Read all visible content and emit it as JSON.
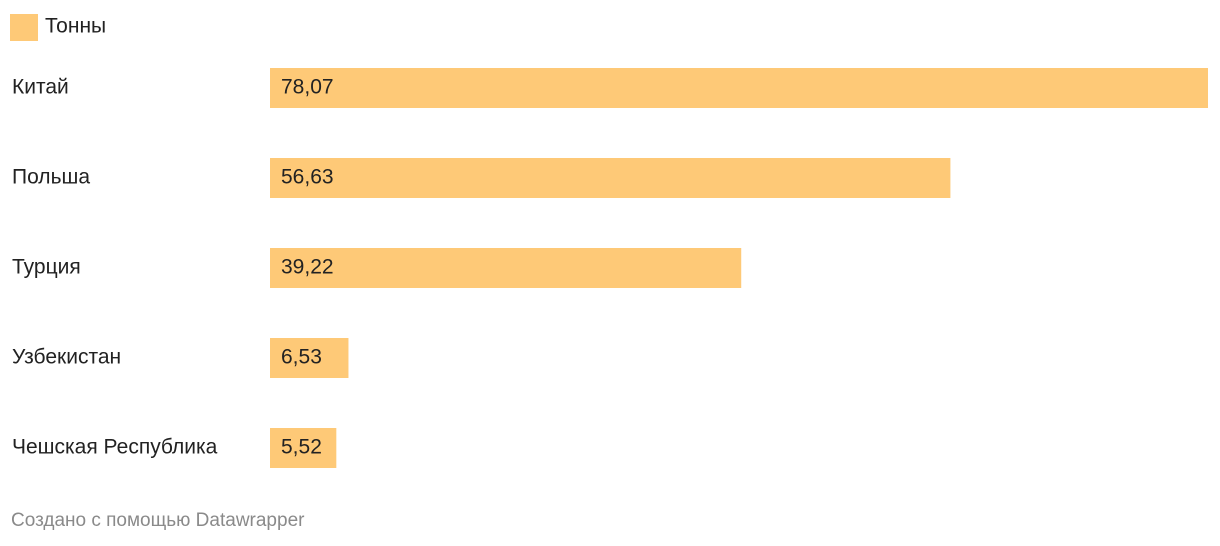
{
  "chart_data": {
    "type": "bar",
    "orientation": "horizontal",
    "categories": [
      "Китай",
      "Польша",
      "Турция",
      "Узбекистан",
      "Чешская Республика"
    ],
    "series": [
      {
        "name": "Тонны",
        "color": "#fec977",
        "values": [
          78.07,
          56.63,
          39.22,
          6.53,
          5.52
        ],
        "value_labels": [
          "78,07",
          "56,63",
          "39,22",
          "6,53",
          "5,52"
        ]
      }
    ],
    "footer": "Создано с помощью Datawrapper"
  }
}
